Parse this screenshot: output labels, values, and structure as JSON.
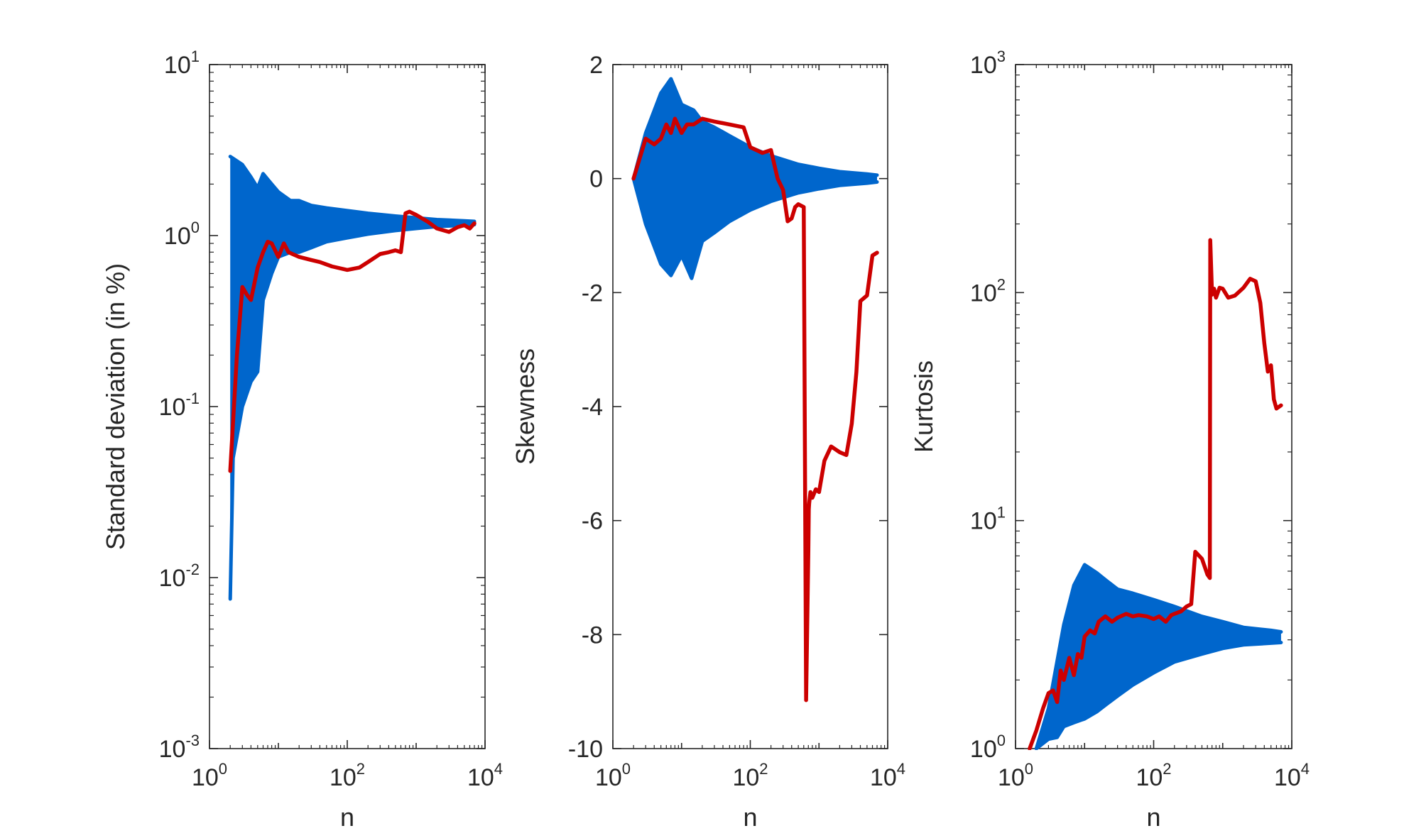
{
  "chart_data": [
    {
      "type": "line",
      "xlabel": "n",
      "ylabel": "Standard deviation (in %)",
      "xscale": "log",
      "yscale": "log",
      "xlim": [
        1,
        10000
      ],
      "ylim": [
        0.001,
        10
      ],
      "xticks": [
        {
          "base": "10",
          "exp": "0"
        },
        {
          "base": "10",
          "exp": "2"
        },
        {
          "base": "10",
          "exp": "4"
        }
      ],
      "yticks": [
        {
          "base": "10",
          "exp": "-3"
        },
        {
          "base": "10",
          "exp": "-2"
        },
        {
          "base": "10",
          "exp": "-1"
        },
        {
          "base": "10",
          "exp": "0"
        },
        {
          "base": "10",
          "exp": "1"
        }
      ],
      "colors": {
        "simulated": "#0066cc",
        "actual": "#cc0000"
      },
      "series": [
        {
          "role": "simulated-envelope-upper",
          "x": [
            2,
            3,
            4,
            5,
            6,
            8,
            10,
            15,
            20,
            30,
            50,
            100,
            200,
            500,
            1000,
            2000,
            5000,
            7000
          ],
          "y": [
            2.9,
            2.6,
            2.2,
            1.9,
            2.3,
            2.0,
            1.8,
            1.6,
            1.6,
            1.5,
            1.45,
            1.4,
            1.35,
            1.3,
            1.27,
            1.24,
            1.22,
            1.21
          ]
        },
        {
          "role": "simulated-envelope-lower",
          "x": [
            2,
            2.2,
            3,
            4,
            5,
            6,
            8,
            10,
            15,
            20,
            30,
            50,
            100,
            200,
            500,
            1000,
            2000,
            5000,
            7000
          ],
          "y": [
            0.0075,
            0.05,
            0.1,
            0.14,
            0.16,
            0.42,
            0.6,
            0.75,
            0.8,
            0.8,
            0.85,
            0.92,
            0.97,
            1.02,
            1.07,
            1.1,
            1.13,
            1.15,
            1.16
          ]
        },
        {
          "role": "actual",
          "x": [
            2,
            2.5,
            3,
            3.5,
            4,
            5,
            6,
            7,
            8,
            10,
            12,
            14,
            16,
            20,
            30,
            40,
            60,
            100,
            150,
            200,
            300,
            400,
            500,
            600,
            700,
            800,
            1000,
            1500,
            2000,
            3000,
            4000,
            5000,
            6000,
            7000
          ],
          "y": [
            0.042,
            0.2,
            0.5,
            0.45,
            0.42,
            0.65,
            0.8,
            0.92,
            0.9,
            0.75,
            0.9,
            0.8,
            0.78,
            0.75,
            0.72,
            0.7,
            0.66,
            0.63,
            0.65,
            0.7,
            0.78,
            0.8,
            0.82,
            0.8,
            1.35,
            1.38,
            1.32,
            1.2,
            1.1,
            1.05,
            1.12,
            1.15,
            1.1,
            1.18
          ]
        }
      ]
    },
    {
      "type": "line",
      "xlabel": "n",
      "ylabel": "Skewness",
      "xscale": "log",
      "yscale": "linear",
      "xlim": [
        1,
        10000
      ],
      "ylim": [
        -10,
        2
      ],
      "xticks": [
        {
          "base": "10",
          "exp": "0"
        },
        {
          "base": "10",
          "exp": "2"
        },
        {
          "base": "10",
          "exp": "4"
        }
      ],
      "yticks": [
        "2",
        "0",
        "-2",
        "-4",
        "-6",
        "-8",
        "-10"
      ],
      "colors": {
        "simulated": "#0066cc",
        "actual": "#cc0000"
      },
      "series": [
        {
          "role": "simulated-envelope-upper",
          "x": [
            2,
            3,
            5,
            7,
            10,
            15,
            20,
            30,
            50,
            100,
            200,
            500,
            1000,
            2000,
            5000,
            7000
          ],
          "y": [
            0,
            0.8,
            1.5,
            1.75,
            1.3,
            1.2,
            1.0,
            0.9,
            0.75,
            0.55,
            0.4,
            0.25,
            0.18,
            0.12,
            0.08,
            0.06
          ]
        },
        {
          "role": "simulated-envelope-lower",
          "x": [
            2,
            3,
            5,
            7,
            10,
            14,
            20,
            30,
            50,
            100,
            200,
            500,
            1000,
            2000,
            5000,
            7000
          ],
          "y": [
            0,
            -0.8,
            -1.5,
            -1.7,
            -1.35,
            -1.75,
            -1.1,
            -0.95,
            -0.75,
            -0.55,
            -0.4,
            -0.25,
            -0.18,
            -0.12,
            -0.08,
            -0.06
          ]
        },
        {
          "role": "actual",
          "x": [
            2,
            3,
            4,
            5,
            6,
            7,
            8,
            10,
            12,
            15,
            20,
            30,
            50,
            80,
            100,
            150,
            200,
            250,
            300,
            350,
            400,
            450,
            500,
            600,
            650,
            700,
            710,
            720,
            750,
            800,
            900,
            1000,
            1200,
            1500,
            2000,
            2500,
            3000,
            3500,
            4000,
            5000,
            6000,
            7000
          ],
          "y": [
            0,
            0.7,
            0.6,
            0.7,
            0.95,
            0.8,
            1.05,
            0.8,
            0.95,
            0.95,
            1.05,
            1.0,
            0.95,
            0.9,
            0.55,
            0.45,
            0.5,
            0.0,
            -0.2,
            -0.75,
            -0.7,
            -0.5,
            -0.45,
            -0.5,
            -9.15,
            -6.5,
            -5.8,
            -5.7,
            -5.5,
            -5.6,
            -5.45,
            -5.5,
            -4.95,
            -4.7,
            -4.8,
            -4.85,
            -4.3,
            -3.4,
            -2.15,
            -2.05,
            -1.35,
            -1.3
          ]
        }
      ]
    },
    {
      "type": "line",
      "xlabel": "n",
      "ylabel": "Kurtosis",
      "xscale": "log",
      "yscale": "log",
      "xlim": [
        1,
        10000
      ],
      "ylim": [
        1,
        1000
      ],
      "xticks": [
        {
          "base": "10",
          "exp": "0"
        },
        {
          "base": "10",
          "exp": "2"
        },
        {
          "base": "10",
          "exp": "4"
        }
      ],
      "yticks": [
        {
          "base": "10",
          "exp": "0"
        },
        {
          "base": "10",
          "exp": "1"
        },
        {
          "base": "10",
          "exp": "2"
        },
        {
          "base": "10",
          "exp": "3"
        }
      ],
      "colors": {
        "simulated": "#0066cc",
        "actual": "#cc0000"
      },
      "series": [
        {
          "role": "simulated-envelope-upper",
          "x": [
            2,
            3,
            5,
            7,
            10,
            15,
            20,
            30,
            50,
            100,
            200,
            500,
            1000,
            2000,
            5000,
            7000
          ],
          "y": [
            1.0,
            1.5,
            3.5,
            5.2,
            6.4,
            5.9,
            5.5,
            5.0,
            4.8,
            4.5,
            4.2,
            3.8,
            3.6,
            3.4,
            3.3,
            3.25
          ]
        },
        {
          "role": "simulated-envelope-lower",
          "x": [
            2,
            3,
            4,
            5,
            7,
            10,
            15,
            20,
            30,
            50,
            100,
            200,
            500,
            1000,
            2000,
            5000,
            7000
          ],
          "y": [
            1.0,
            1.1,
            1.12,
            1.25,
            1.3,
            1.35,
            1.45,
            1.55,
            1.7,
            1.9,
            2.15,
            2.4,
            2.6,
            2.75,
            2.85,
            2.9,
            2.92
          ]
        },
        {
          "role": "actual",
          "x": [
            1.6,
            2,
            2.5,
            3,
            3.5,
            4,
            4.5,
            5,
            6,
            7,
            8,
            9,
            10,
            12,
            14,
            16,
            20,
            25,
            30,
            40,
            50,
            60,
            80,
            100,
            120,
            150,
            180,
            200,
            250,
            300,
            350,
            400,
            500,
            600,
            650,
            660,
            700,
            750,
            800,
            900,
            1000,
            1200,
            1500,
            2000,
            2500,
            3000,
            3500,
            4000,
            4500,
            5000,
            5500,
            6000,
            7000
          ],
          "y": [
            1.0,
            1.2,
            1.5,
            1.75,
            1.8,
            1.6,
            2.2,
            2.0,
            2.5,
            2.1,
            2.6,
            2.5,
            3.1,
            3.3,
            3.2,
            3.6,
            3.8,
            3.6,
            3.75,
            3.9,
            3.8,
            3.85,
            3.8,
            3.7,
            3.8,
            3.6,
            3.85,
            3.9,
            4.0,
            4.2,
            4.3,
            7.3,
            6.8,
            5.8,
            5.6,
            170,
            98,
            104,
            95,
            105,
            104,
            95,
            97,
            105,
            115,
            112,
            90,
            60,
            45,
            48,
            34,
            31,
            32
          ]
        }
      ]
    }
  ]
}
